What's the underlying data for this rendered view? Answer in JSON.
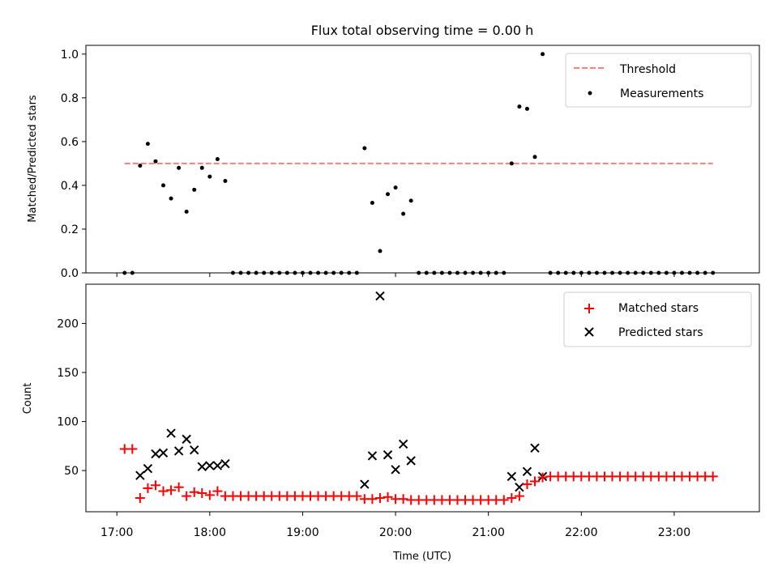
{
  "figure": {
    "title": "Flux total observing time = 0.00 h",
    "xlabel": "Time (UTC)",
    "xticks": [
      {
        "t": 17.0,
        "label": "17:00"
      },
      {
        "t": 18.0,
        "label": "18:00"
      },
      {
        "t": 19.0,
        "label": "19:00"
      },
      {
        "t": 20.0,
        "label": "20:00"
      },
      {
        "t": 21.0,
        "label": "21:00"
      },
      {
        "t": 22.0,
        "label": "22:00"
      },
      {
        "t": 23.0,
        "label": "23:00"
      }
    ]
  },
  "chart_data": [
    {
      "type": "scatter",
      "xlabel": "",
      "ylabel": "Matched/Predicted stars",
      "xlim": [
        "16:40",
        "23:55"
      ],
      "ylim": [
        0,
        1.04
      ],
      "yticks": [
        "0.0",
        "0.2",
        "0.4",
        "0.6",
        "0.8",
        "1.0"
      ],
      "threshold": {
        "name": "Threshold",
        "value": 0.5,
        "x_start": "17:05",
        "x_end": "23:25",
        "color": "#ff7f7f"
      },
      "series": [
        {
          "name": "Measurements",
          "color": "#000000",
          "points": [
            [
              "17:05",
              0
            ],
            [
              "17:10",
              0
            ],
            [
              "17:15",
              0.49
            ],
            [
              "17:20",
              0.59
            ],
            [
              "17:25",
              0.51
            ],
            [
              "17:30",
              0.4
            ],
            [
              "17:35",
              0.34
            ],
            [
              "17:40",
              0.48
            ],
            [
              "17:45",
              0.28
            ],
            [
              "17:50",
              0.38
            ],
            [
              "17:55",
              0.48
            ],
            [
              "18:00",
              0.44
            ],
            [
              "18:05",
              0.52
            ],
            [
              "18:10",
              0.42
            ],
            [
              "18:15",
              0
            ],
            [
              "18:20",
              0
            ],
            [
              "18:25",
              0
            ],
            [
              "18:30",
              0
            ],
            [
              "18:35",
              0
            ],
            [
              "18:40",
              0
            ],
            [
              "18:45",
              0
            ],
            [
              "18:50",
              0
            ],
            [
              "18:55",
              0
            ],
            [
              "19:00",
              0
            ],
            [
              "19:05",
              0
            ],
            [
              "19:10",
              0
            ],
            [
              "19:15",
              0
            ],
            [
              "19:20",
              0
            ],
            [
              "19:25",
              0
            ],
            [
              "19:30",
              0
            ],
            [
              "19:35",
              0
            ],
            [
              "19:40",
              0.57
            ],
            [
              "19:45",
              0.32
            ],
            [
              "19:50",
              0.1
            ],
            [
              "19:55",
              0.36
            ],
            [
              "20:00",
              0.39
            ],
            [
              "20:05",
              0.27
            ],
            [
              "20:10",
              0.33
            ],
            [
              "20:15",
              0
            ],
            [
              "20:20",
              0
            ],
            [
              "20:25",
              0
            ],
            [
              "20:30",
              0
            ],
            [
              "20:35",
              0
            ],
            [
              "20:40",
              0
            ],
            [
              "20:45",
              0
            ],
            [
              "20:50",
              0
            ],
            [
              "20:55",
              0
            ],
            [
              "21:00",
              0
            ],
            [
              "21:05",
              0
            ],
            [
              "21:10",
              0
            ],
            [
              "21:15",
              0.5
            ],
            [
              "21:20",
              0.76
            ],
            [
              "21:25",
              0.75
            ],
            [
              "21:30",
              0.53
            ],
            [
              "21:35",
              1.0
            ],
            [
              "21:40",
              0
            ],
            [
              "21:45",
              0
            ],
            [
              "21:50",
              0
            ],
            [
              "21:55",
              0
            ],
            [
              "22:00",
              0
            ],
            [
              "22:05",
              0
            ],
            [
              "22:10",
              0
            ],
            [
              "22:15",
              0
            ],
            [
              "22:20",
              0
            ],
            [
              "22:25",
              0
            ],
            [
              "22:30",
              0
            ],
            [
              "22:35",
              0
            ],
            [
              "22:40",
              0
            ],
            [
              "22:45",
              0
            ],
            [
              "22:50",
              0
            ],
            [
              "22:55",
              0
            ],
            [
              "23:00",
              0
            ],
            [
              "23:05",
              0
            ],
            [
              "23:10",
              0
            ],
            [
              "23:15",
              0
            ],
            [
              "23:20",
              0
            ],
            [
              "23:25",
              0
            ]
          ]
        }
      ],
      "legend": {
        "position": "top-right",
        "entries": [
          "Threshold",
          "Measurements"
        ]
      }
    },
    {
      "type": "scatter",
      "xlabel": "Time (UTC)",
      "ylabel": "Count",
      "xlim": [
        "16:40",
        "23:55"
      ],
      "ylim": [
        8,
        240
      ],
      "yticks": [
        "50",
        "100",
        "150",
        "200"
      ],
      "series": [
        {
          "name": "Matched stars",
          "marker": "+",
          "color": "#ff0000",
          "points": [
            [
              "17:05",
              72
            ],
            [
              "17:10",
              72
            ],
            [
              "17:15",
              22
            ],
            [
              "17:20",
              32
            ],
            [
              "17:25",
              35
            ],
            [
              "17:30",
              29
            ],
            [
              "17:35",
              30
            ],
            [
              "17:40",
              33
            ],
            [
              "17:45",
              24
            ],
            [
              "17:50",
              28
            ],
            [
              "17:55",
              27
            ],
            [
              "18:00",
              25
            ],
            [
              "18:05",
              29
            ],
            [
              "18:10",
              24
            ],
            [
              "18:15",
              24
            ],
            [
              "18:20",
              24
            ],
            [
              "18:25",
              24
            ],
            [
              "18:30",
              24
            ],
            [
              "18:35",
              24
            ],
            [
              "18:40",
              24
            ],
            [
              "18:45",
              24
            ],
            [
              "18:50",
              24
            ],
            [
              "18:55",
              24
            ],
            [
              "19:00",
              24
            ],
            [
              "19:05",
              24
            ],
            [
              "19:10",
              24
            ],
            [
              "19:15",
              24
            ],
            [
              "19:20",
              24
            ],
            [
              "19:25",
              24
            ],
            [
              "19:30",
              24
            ],
            [
              "19:35",
              24
            ],
            [
              "19:40",
              21
            ],
            [
              "19:45",
              21
            ],
            [
              "19:50",
              22
            ],
            [
              "19:55",
              23
            ],
            [
              "20:00",
              21
            ],
            [
              "20:05",
              21
            ],
            [
              "20:10",
              20
            ],
            [
              "20:15",
              20
            ],
            [
              "20:20",
              20
            ],
            [
              "20:25",
              20
            ],
            [
              "20:30",
              20
            ],
            [
              "20:35",
              20
            ],
            [
              "20:40",
              20
            ],
            [
              "20:45",
              20
            ],
            [
              "20:50",
              20
            ],
            [
              "20:55",
              20
            ],
            [
              "21:00",
              20
            ],
            [
              "21:05",
              20
            ],
            [
              "21:10",
              20
            ],
            [
              "21:15",
              22
            ],
            [
              "21:20",
              24
            ],
            [
              "21:25",
              36
            ],
            [
              "21:30",
              39
            ],
            [
              "21:35",
              43
            ],
            [
              "21:40",
              44
            ],
            [
              "21:45",
              44
            ],
            [
              "21:50",
              44
            ],
            [
              "21:55",
              44
            ],
            [
              "22:00",
              44
            ],
            [
              "22:05",
              44
            ],
            [
              "22:10",
              44
            ],
            [
              "22:15",
              44
            ],
            [
              "22:20",
              44
            ],
            [
              "22:25",
              44
            ],
            [
              "22:30",
              44
            ],
            [
              "22:35",
              44
            ],
            [
              "22:40",
              44
            ],
            [
              "22:45",
              44
            ],
            [
              "22:50",
              44
            ],
            [
              "22:55",
              44
            ],
            [
              "23:00",
              44
            ],
            [
              "23:05",
              44
            ],
            [
              "23:10",
              44
            ],
            [
              "23:15",
              44
            ],
            [
              "23:20",
              44
            ],
            [
              "23:25",
              44
            ]
          ]
        },
        {
          "name": "Predicted stars",
          "marker": "x",
          "color": "#000000",
          "points": [
            [
              "17:15",
              45
            ],
            [
              "17:20",
              52
            ],
            [
              "17:25",
              67
            ],
            [
              "17:30",
              68
            ],
            [
              "17:35",
              88
            ],
            [
              "17:40",
              70
            ],
            [
              "17:45",
              82
            ],
            [
              "17:50",
              71
            ],
            [
              "17:55",
              54
            ],
            [
              "18:00",
              55
            ],
            [
              "18:05",
              55
            ],
            [
              "18:10",
              57
            ],
            [
              "19:40",
              36
            ],
            [
              "19:45",
              65
            ],
            [
              "19:50",
              228
            ],
            [
              "19:55",
              66
            ],
            [
              "20:00",
              51
            ],
            [
              "20:05",
              77
            ],
            [
              "20:10",
              60
            ],
            [
              "21:15",
              44
            ],
            [
              "21:20",
              33
            ],
            [
              "21:25",
              49
            ],
            [
              "21:30",
              73
            ],
            [
              "21:35",
              44
            ]
          ]
        }
      ],
      "legend": {
        "position": "top-right",
        "entries": [
          "Matched stars",
          "Predicted stars"
        ]
      }
    }
  ]
}
